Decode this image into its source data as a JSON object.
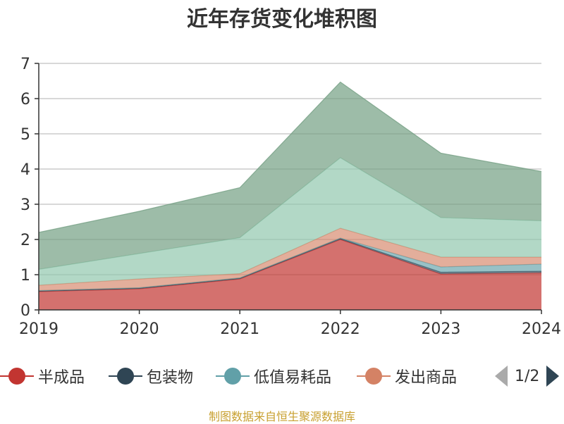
{
  "chart_data": {
    "type": "area",
    "stacked": true,
    "title": "近年存货变化堆积图",
    "categories": [
      "2019",
      "2020",
      "2021",
      "2022",
      "2023",
      "2024"
    ],
    "ylim": [
      0,
      7
    ],
    "yticks": [
      "0",
      "1",
      "2",
      "3",
      "4",
      "5",
      "6",
      "7"
    ],
    "grid": true,
    "legend_position": "bottom",
    "series": [
      {
        "name": "半成品",
        "color": "#c23531",
        "values": [
          0.52,
          0.6,
          0.88,
          2.0,
          1.02,
          1.05
        ]
      },
      {
        "name": "包装物",
        "color": "#2f4554",
        "values": [
          0.02,
          0.02,
          0.02,
          0.03,
          0.05,
          0.05
        ]
      },
      {
        "name": "低值易耗品",
        "color": "#61a0a8",
        "values": [
          0.01,
          0.01,
          0.01,
          0.01,
          0.15,
          0.2
        ]
      },
      {
        "name": "发出商品",
        "color": "#d48265",
        "values": [
          0.15,
          0.25,
          0.12,
          0.28,
          0.28,
          0.2
        ]
      },
      {
        "name": "",
        "color": "#91c7ae",
        "values": [
          0.45,
          0.72,
          1.02,
          2.0,
          1.12,
          1.03
        ]
      },
      {
        "name": "",
        "color": "#749f83",
        "values": [
          1.05,
          1.2,
          1.42,
          2.15,
          1.83,
          1.4
        ]
      }
    ]
  },
  "legend": {
    "items": [
      {
        "label": "半成品",
        "color": "#c23531"
      },
      {
        "label": "包装物",
        "color": "#2f4554"
      },
      {
        "label": "低值易耗品",
        "color": "#61a0a8"
      },
      {
        "label": "发出商品",
        "color": "#d48265"
      }
    ],
    "page": "1/2"
  },
  "source_text": "制图数据来自恒生聚源数据库"
}
